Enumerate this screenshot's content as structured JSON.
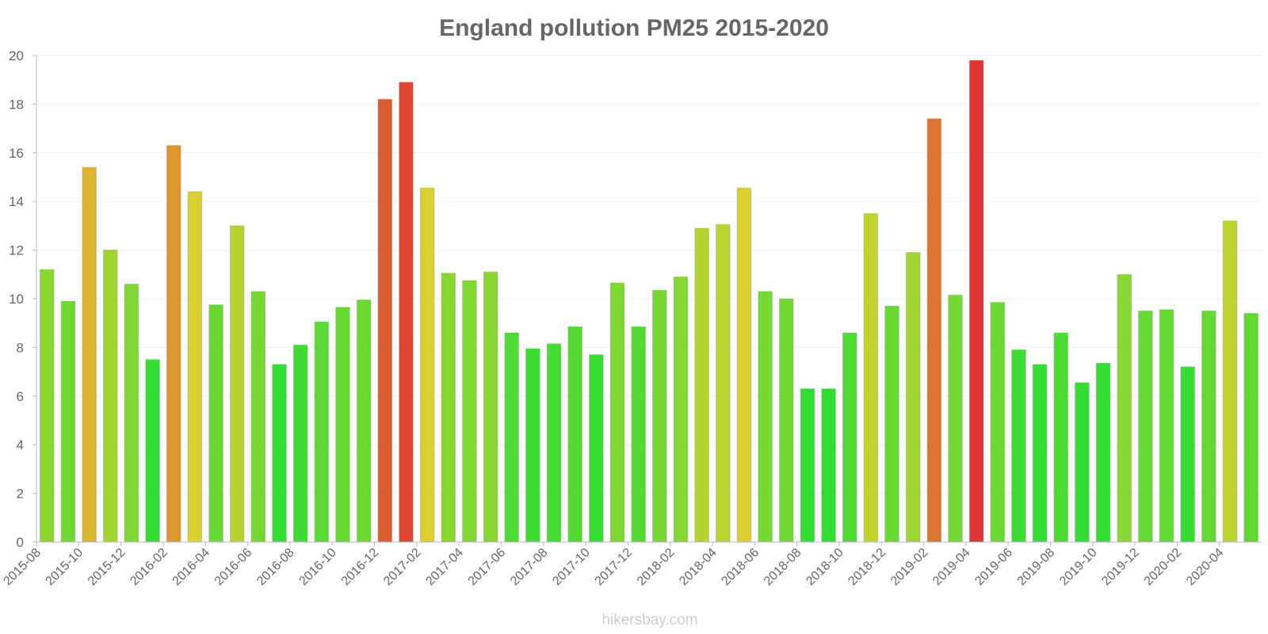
{
  "chart_data": {
    "type": "bar",
    "title": "England pollution PM25 2015-2020",
    "xlabel": "",
    "ylabel": "",
    "ylim": [
      0,
      20
    ],
    "yticks": [
      0,
      2,
      4,
      6,
      8,
      10,
      12,
      14,
      16,
      18,
      20
    ],
    "categories": [
      "2015-08",
      "2015-09",
      "2015-10",
      "2015-11",
      "2015-12",
      "2016-01",
      "2016-02",
      "2016-03",
      "2016-04",
      "2016-05",
      "2016-06",
      "2016-07",
      "2016-08",
      "2016-09",
      "2016-10",
      "2016-11",
      "2016-12",
      "2017-01",
      "2017-02",
      "2017-03",
      "2017-04",
      "2017-05",
      "2017-06",
      "2017-07",
      "2017-08",
      "2017-09",
      "2017-10",
      "2017-11",
      "2017-12",
      "2018-01",
      "2018-02",
      "2018-03",
      "2018-04",
      "2018-05",
      "2018-06",
      "2018-07",
      "2018-08",
      "2018-09",
      "2018-10",
      "2018-11",
      "2018-12",
      "2019-01",
      "2019-02",
      "2019-03",
      "2019-04",
      "2019-05",
      "2019-06",
      "2019-07",
      "2019-08",
      "2019-09",
      "2019-10",
      "2019-11",
      "2019-12",
      "2020-01",
      "2020-02",
      "2020-03",
      "2020-04",
      "2020-05"
    ],
    "values": [
      11.2,
      9.9,
      15.4,
      12.0,
      10.6,
      7.5,
      16.3,
      14.4,
      9.75,
      13.0,
      10.3,
      7.3,
      8.1,
      9.05,
      9.65,
      9.95,
      18.2,
      18.9,
      14.55,
      11.05,
      10.75,
      11.1,
      8.6,
      7.95,
      8.15,
      8.85,
      7.7,
      10.65,
      8.85,
      10.35,
      10.9,
      12.9,
      13.05,
      14.55,
      10.3,
      10.0,
      6.3,
      6.3,
      8.6,
      13.5,
      9.7,
      11.9,
      17.4,
      10.15,
      19.8,
      9.85,
      7.9,
      7.3,
      8.6,
      6.55,
      7.35,
      11.0,
      9.5,
      9.55,
      7.2,
      9.5,
      13.2,
      9.4
    ],
    "tick_labels": [
      "2015-08",
      "2015-10",
      "2015-12",
      "2016-02",
      "2016-04",
      "2016-06",
      "2016-08",
      "2016-10",
      "2016-12",
      "2017-02",
      "2017-04",
      "2017-06",
      "2017-08",
      "2017-10",
      "2017-12",
      "2018-02",
      "2018-04",
      "2018-06",
      "2018-08",
      "2018-10",
      "2018-12",
      "2019-02",
      "2019-04",
      "2019-06",
      "2019-08",
      "2019-10",
      "2019-12",
      "2020-02",
      "2020-04"
    ],
    "colors": {
      "low": "#33dd33",
      "mid": "#dcd030",
      "high": "#dd3333",
      "stroke": "#999999"
    }
  },
  "credit": "hikersbay.com"
}
